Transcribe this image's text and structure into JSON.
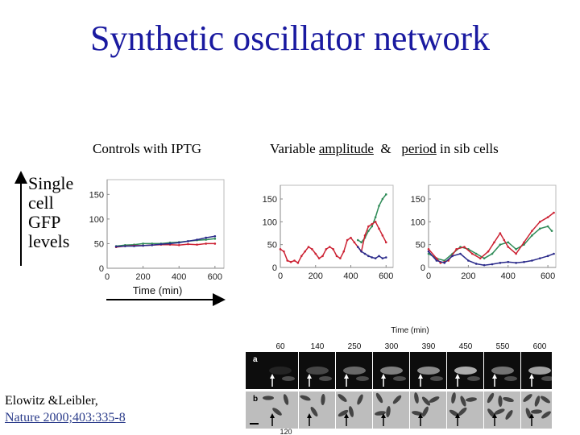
{
  "slide": {
    "title": "Synthetic oscillator network",
    "captions": {
      "left": "Controls with IPTG",
      "right_part1": "Variable",
      "right_part2": "amplitude",
      "right_part3": "&",
      "right_part4": "period",
      "right_part5": "in sib cells"
    },
    "y_label_lines": [
      "Single",
      "cell",
      "GFP",
      "levels"
    ],
    "citation": {
      "line1": "Elowitz &Leibler,",
      "line2": "Nature 2000;403:335-8"
    }
  },
  "chart_data": [
    {
      "type": "line",
      "title": "",
      "xlabel": "Time (min)",
      "ylabel": "",
      "xlim": [
        0,
        650
      ],
      "ylim": [
        0,
        180
      ],
      "xticks": [
        0,
        200,
        400,
        600
      ],
      "yticks": [
        0,
        50,
        100,
        150
      ],
      "colors": [
        "#2e8b57",
        "#cc2233",
        "#2a2a8a"
      ],
      "series": [
        {
          "values": [
            [
              50,
              45
            ],
            [
              100,
              47
            ],
            [
              150,
              48
            ],
            [
              200,
              50
            ],
            [
              250,
              50
            ],
            [
              300,
              50
            ],
            [
              350,
              52
            ],
            [
              400,
              53
            ],
            [
              450,
              55
            ],
            [
              500,
              57
            ],
            [
              550,
              58
            ],
            [
              600,
              60
            ]
          ]
        },
        {
          "values": [
            [
              50,
              43
            ],
            [
              100,
              45
            ],
            [
              150,
              46
            ],
            [
              200,
              46
            ],
            [
              250,
              47
            ],
            [
              300,
              48
            ],
            [
              350,
              48
            ],
            [
              400,
              47
            ],
            [
              450,
              49
            ],
            [
              500,
              48
            ],
            [
              550,
              50
            ],
            [
              600,
              50
            ]
          ]
        },
        {
          "values": [
            [
              50,
              44
            ],
            [
              100,
              45
            ],
            [
              150,
              45
            ],
            [
              200,
              46
            ],
            [
              250,
              47
            ],
            [
              300,
              49
            ],
            [
              350,
              50
            ],
            [
              400,
              52
            ],
            [
              450,
              55
            ],
            [
              500,
              58
            ],
            [
              550,
              62
            ],
            [
              600,
              65
            ]
          ]
        }
      ]
    },
    {
      "type": "line",
      "title": "",
      "xlabel": "",
      "ylabel": "",
      "xlim": [
        0,
        640
      ],
      "ylim": [
        0,
        180
      ],
      "xticks": [
        0,
        200,
        400,
        600
      ],
      "yticks": [
        0,
        50,
        100,
        150
      ],
      "colors": [
        "#2e8b57",
        "#cc2233",
        "#2a2a8a"
      ],
      "series": [
        {
          "values": [
            [
              440,
              60
            ],
            [
              460,
              55
            ],
            [
              480,
              65
            ],
            [
              500,
              80
            ],
            [
              520,
              90
            ],
            [
              540,
              110
            ],
            [
              560,
              135
            ],
            [
              580,
              150
            ],
            [
              600,
              160
            ]
          ]
        },
        {
          "values": [
            [
              0,
              40
            ],
            [
              20,
              35
            ],
            [
              40,
              15
            ],
            [
              60,
              12
            ],
            [
              80,
              15
            ],
            [
              100,
              10
            ],
            [
              120,
              25
            ],
            [
              140,
              35
            ],
            [
              160,
              45
            ],
            [
              180,
              40
            ],
            [
              200,
              30
            ],
            [
              220,
              20
            ],
            [
              240,
              25
            ],
            [
              260,
              40
            ],
            [
              280,
              45
            ],
            [
              300,
              40
            ],
            [
              320,
              25
            ],
            [
              340,
              20
            ],
            [
              360,
              35
            ],
            [
              380,
              60
            ],
            [
              400,
              65
            ],
            [
              420,
              55
            ],
            [
              440,
              45
            ],
            [
              460,
              35
            ],
            [
              480,
              70
            ],
            [
              500,
              90
            ],
            [
              520,
              95
            ],
            [
              540,
              100
            ],
            [
              560,
              85
            ],
            [
              580,
              70
            ],
            [
              600,
              55
            ]
          ]
        },
        {
          "values": [
            [
              440,
              45
            ],
            [
              460,
              35
            ],
            [
              480,
              30
            ],
            [
              500,
              25
            ],
            [
              520,
              22
            ],
            [
              540,
              20
            ],
            [
              560,
              25
            ],
            [
              580,
              20
            ],
            [
              600,
              22
            ]
          ]
        }
      ]
    },
    {
      "type": "line",
      "title": "",
      "xlabel": "",
      "ylabel": "",
      "xlim": [
        0,
        640
      ],
      "ylim": [
        0,
        180
      ],
      "xticks": [
        0,
        200,
        400,
        600
      ],
      "yticks": [
        0,
        50,
        100,
        150
      ],
      "colors": [
        "#2e8b57",
        "#cc2233",
        "#2a2a8a"
      ],
      "series": [
        {
          "values": [
            [
              0,
              30
            ],
            [
              40,
              20
            ],
            [
              80,
              15
            ],
            [
              120,
              30
            ],
            [
              160,
              45
            ],
            [
              200,
              40
            ],
            [
              240,
              30
            ],
            [
              280,
              20
            ],
            [
              320,
              30
            ],
            [
              360,
              50
            ],
            [
              400,
              55
            ],
            [
              440,
              40
            ],
            [
              480,
              50
            ],
            [
              520,
              70
            ],
            [
              560,
              85
            ],
            [
              600,
              90
            ],
            [
              620,
              80
            ]
          ]
        },
        {
          "values": [
            [
              0,
              40
            ],
            [
              40,
              20
            ],
            [
              60,
              10
            ],
            [
              100,
              15
            ],
            [
              140,
              40
            ],
            [
              180,
              45
            ],
            [
              220,
              30
            ],
            [
              260,
              20
            ],
            [
              300,
              35
            ],
            [
              330,
              55
            ],
            [
              360,
              75
            ],
            [
              380,
              60
            ],
            [
              400,
              45
            ],
            [
              440,
              30
            ],
            [
              480,
              55
            ],
            [
              520,
              80
            ],
            [
              560,
              100
            ],
            [
              600,
              110
            ],
            [
              630,
              120
            ]
          ]
        },
        {
          "values": [
            [
              0,
              35
            ],
            [
              40,
              15
            ],
            [
              80,
              10
            ],
            [
              120,
              25
            ],
            [
              160,
              30
            ],
            [
              200,
              15
            ],
            [
              240,
              8
            ],
            [
              280,
              5
            ],
            [
              320,
              7
            ],
            [
              360,
              10
            ],
            [
              400,
              12
            ],
            [
              440,
              10
            ],
            [
              480,
              12
            ],
            [
              520,
              15
            ],
            [
              560,
              20
            ],
            [
              600,
              25
            ],
            [
              630,
              30
            ]
          ]
        }
      ]
    }
  ],
  "micrograph": {
    "time_label": "Time (min)",
    "times": [
      "60",
      "140",
      "250",
      "300",
      "390",
      "450",
      "550",
      "600"
    ],
    "row_labels": [
      "a",
      "b"
    ],
    "bottom_time": "120"
  }
}
